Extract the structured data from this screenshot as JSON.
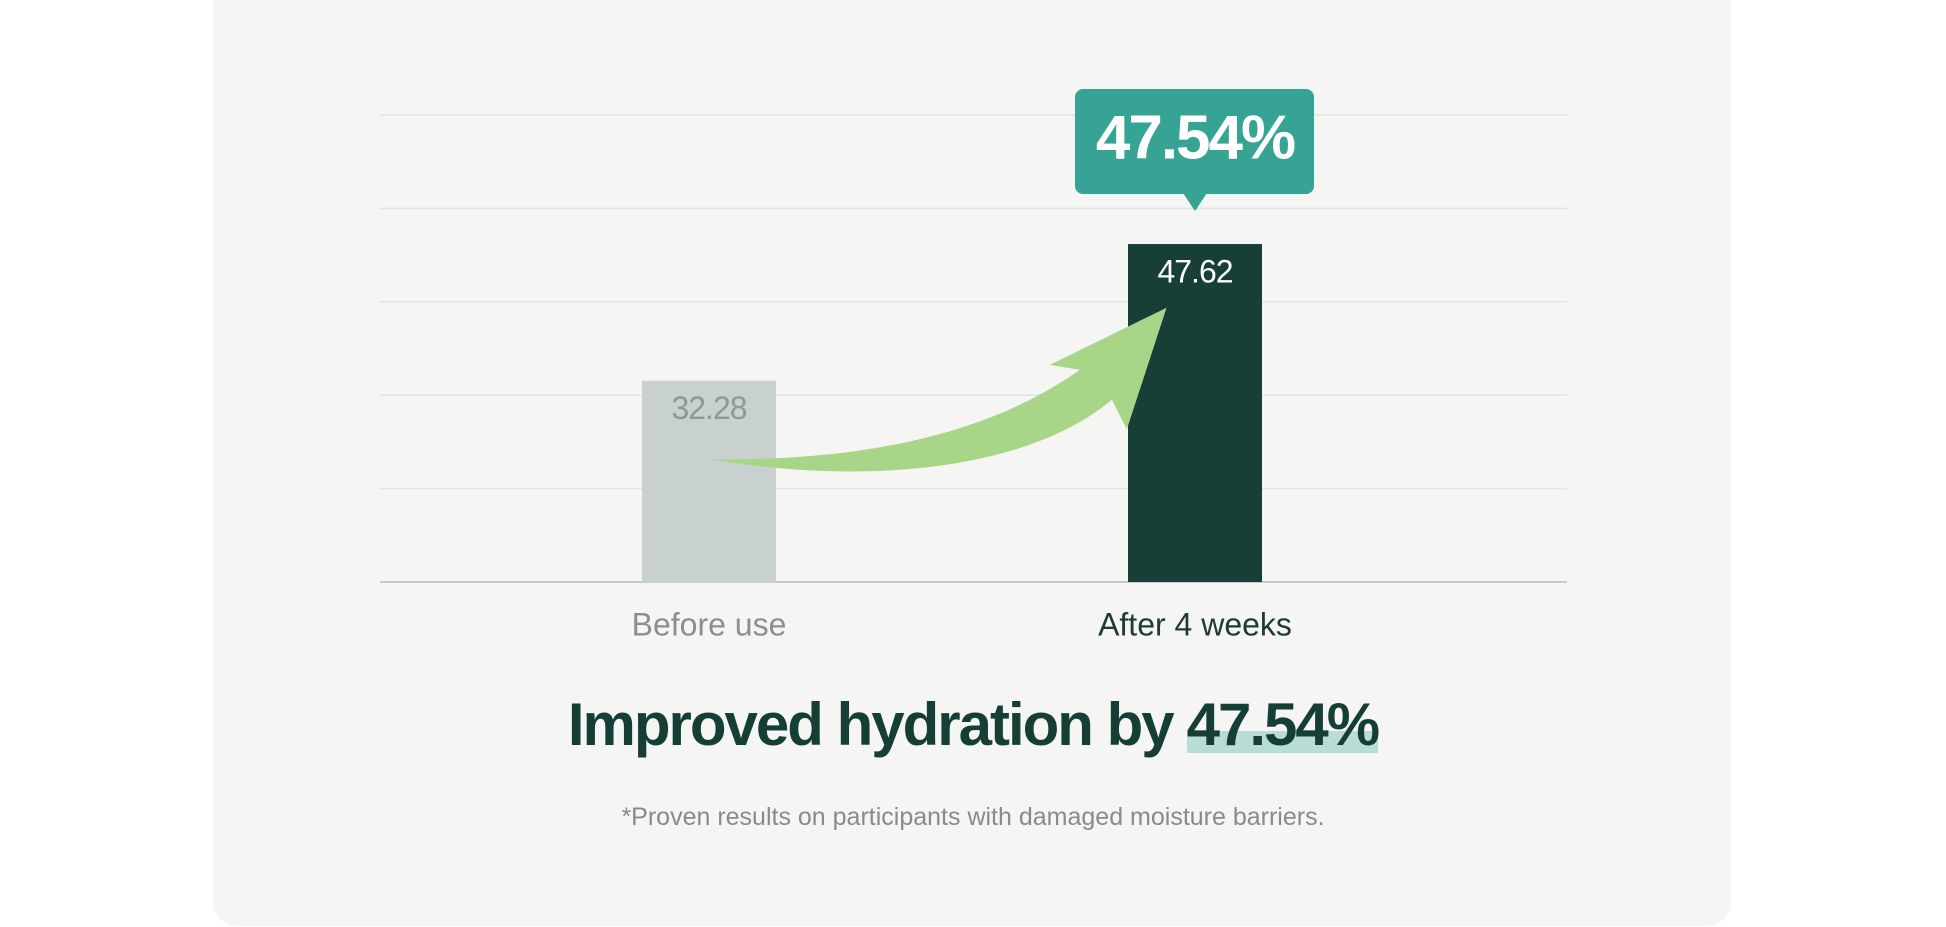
{
  "chart_data": {
    "type": "bar",
    "categories": [
      "Before use",
      "After 4 weeks"
    ],
    "values": [
      32.28,
      47.62
    ],
    "colors": [
      "#c8d1cf",
      "#173f37"
    ],
    "label_colors": [
      "#8e9895",
      "#ffffff"
    ],
    "category_colors": [
      "#8e8e8e",
      "#1d3a33"
    ],
    "ylim": [
      9.7,
      62.1
    ],
    "grid": true,
    "callout": "47.54%",
    "headline": "Improved hydration by",
    "headline_highlight": "47.54%",
    "footnote": "*Proven results on participants with damaged moisture barriers."
  }
}
